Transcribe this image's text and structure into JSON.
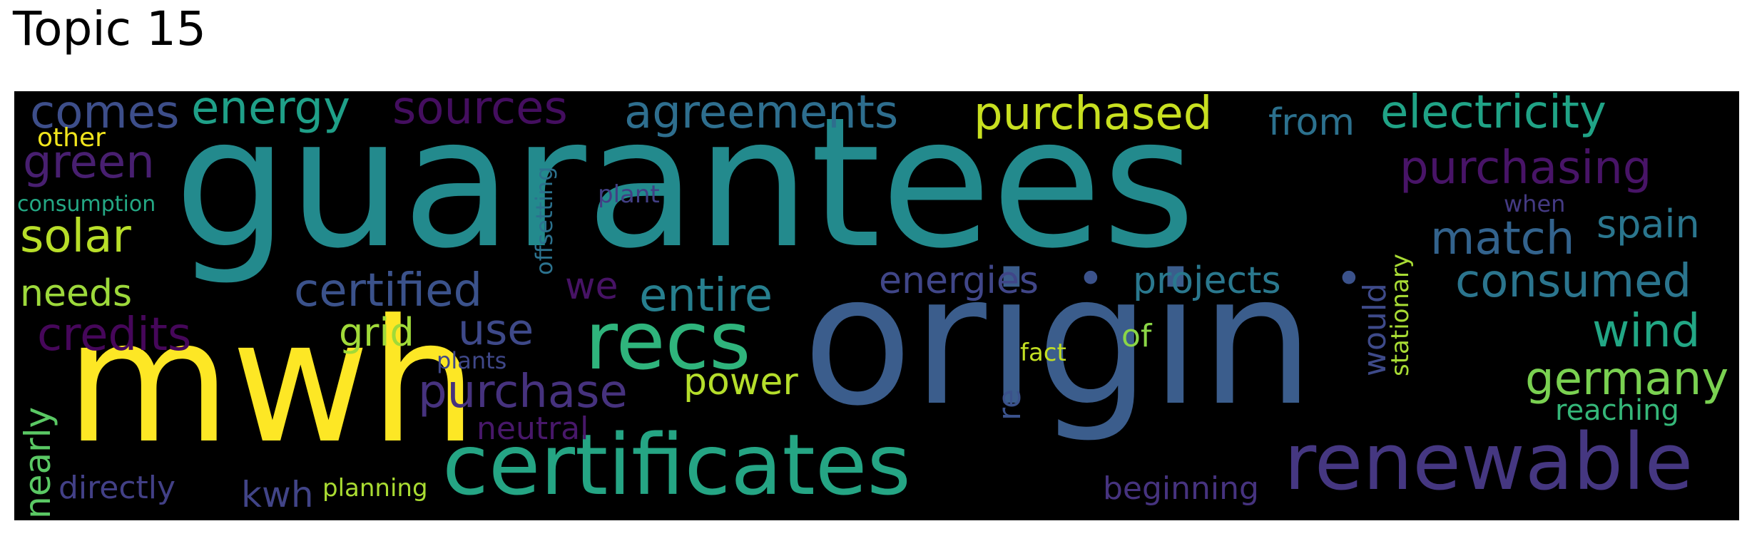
{
  "title": "Topic 15",
  "words": {
    "guarantees": {
      "text": "guarantees",
      "color": "#238a8d"
    },
    "origin": {
      "text": "origin",
      "color": "#3b5d8c"
    },
    "mwh": {
      "text": "mwh",
      "color": "#fde725"
    },
    "certificates": {
      "text": "certificates",
      "color": "#25a584"
    },
    "recs": {
      "text": "recs",
      "color": "#2fb47c"
    },
    "renewable": {
      "text": "renewable",
      "color": "#453781"
    },
    "purchased": {
      "text": "purchased",
      "color": "#c8e020"
    },
    "electricity": {
      "text": "electricity",
      "color": "#20a386"
    },
    "agreements": {
      "text": "agreements",
      "color": "#2e6e8e"
    },
    "sources": {
      "text": "sources",
      "color": "#440e5f"
    },
    "energy": {
      "text": "energy",
      "color": "#1fa088"
    },
    "comes": {
      "text": "comes",
      "color": "#3d4e8a"
    },
    "other": {
      "text": "other",
      "color": "#f1e51d"
    },
    "green": {
      "text": "green",
      "color": "#481f70"
    },
    "consumption": {
      "text": "consumption",
      "color": "#24a884"
    },
    "solar": {
      "text": "solar",
      "color": "#b8de29"
    },
    "needs": {
      "text": "needs",
      "color": "#9dd93b"
    },
    "credits": {
      "text": "credits",
      "color": "#46075a"
    },
    "nearly": {
      "text": "nearly",
      "color": "#5ac864"
    },
    "directly": {
      "text": "directly",
      "color": "#424086"
    },
    "kwh": {
      "text": "kwh",
      "color": "#414487"
    },
    "planning": {
      "text": "planning",
      "color": "#aadc32"
    },
    "certified": {
      "text": "certified",
      "color": "#3b528b"
    },
    "we": {
      "text": "we",
      "color": "#471365"
    },
    "entire": {
      "text": "entire",
      "color": "#277f8e"
    },
    "grid": {
      "text": "grid",
      "color": "#a0da39"
    },
    "use": {
      "text": "use",
      "color": "#3e4989"
    },
    "purchase": {
      "text": "purchase",
      "color": "#46327e"
    },
    "power": {
      "text": "power",
      "color": "#b5de2b"
    },
    "neutral": {
      "text": "neutral",
      "color": "#48186a"
    },
    "plants": {
      "text": "plants",
      "color": "#3f4788"
    },
    "plant": {
      "text": "plant",
      "color": "#423f85"
    },
    "offsetting": {
      "text": "offsetting",
      "color": "#2c728e"
    },
    "energies": {
      "text": "energies",
      "color": "#404688"
    },
    "dot1": {
      "text": "•",
      "color": "#3b528b"
    },
    "projects": {
      "text": "projects",
      "color": "#2a788e"
    },
    "dot2": {
      "text": "•",
      "color": "#3b528b"
    },
    "from": {
      "text": "from",
      "color": "#2c718e"
    },
    "purchasing": {
      "text": "purchasing",
      "color": "#481467"
    },
    "match": {
      "text": "match",
      "color": "#33638d"
    },
    "spain": {
      "text": "spain",
      "color": "#2a768e"
    },
    "when": {
      "text": "when",
      "color": "#443a83"
    },
    "consumed": {
      "text": "consumed",
      "color": "#2b758e"
    },
    "wind": {
      "text": "wind",
      "color": "#22a785"
    },
    "germany": {
      "text": "germany",
      "color": "#7ad151"
    },
    "reaching": {
      "text": "reaching",
      "color": "#35b779"
    },
    "beginning": {
      "text": "beginning",
      "color": "#46337f"
    },
    "re": {
      "text": "re",
      "color": "#3b528b"
    },
    "fact": {
      "text": "fact",
      "color": "#c2df23"
    },
    "of": {
      "text": "of",
      "color": "#8bd646"
    },
    "would": {
      "text": "would",
      "color": "#3e4a89"
    },
    "stationary": {
      "text": "stationary",
      "color": "#a8db34"
    }
  }
}
